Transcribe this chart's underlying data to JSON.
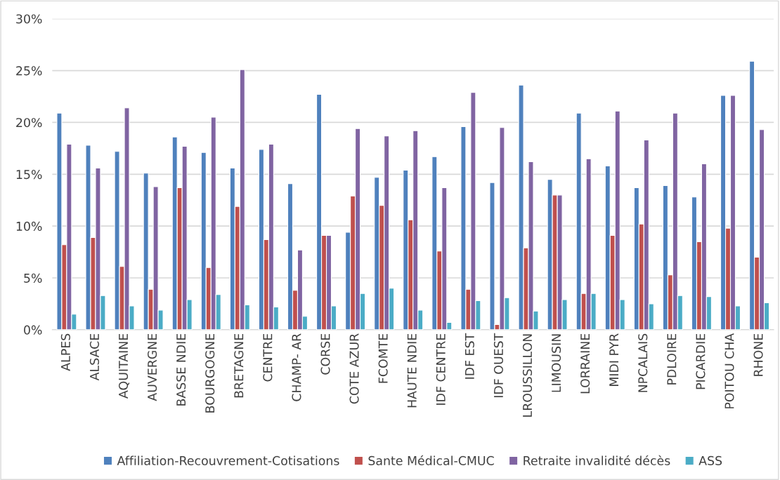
{
  "chart_data": {
    "type": "bar",
    "categories": [
      "ALPES",
      "ALSACE",
      "AQUITAINE",
      "AUVERGNE",
      "BASSE NDIE",
      "BOURGOGNE",
      "BRETAGNE",
      "CENTRE",
      "CHAMP- AR",
      "CORSE",
      "COTE AZUR",
      "FCOMTE",
      "HAUTE NDIE",
      "IDF CENTRE",
      "IDF EST",
      "IDF OUEST",
      "LROUSSILLON",
      "LIMOUSIN",
      "LORRAINE",
      "MIDI PYR",
      "NPCALAIS",
      "PDLOIRE",
      "PICARDIE",
      "POITOU CHA",
      "RHONE"
    ],
    "series": [
      {
        "name": "Affiliation-Recouvrement-Cotisations",
        "color": "#4f81bd",
        "values": [
          20.9,
          17.8,
          17.2,
          15.1,
          18.6,
          17.1,
          15.6,
          17.4,
          14.1,
          22.7,
          9.4,
          14.7,
          15.4,
          16.7,
          19.6,
          14.2,
          23.6,
          14.5,
          20.9,
          15.8,
          13.7,
          13.9,
          12.8,
          22.6,
          25.9
        ]
      },
      {
        "name": "Sante Médical-CMUC",
        "color": "#c0504d",
        "values": [
          8.2,
          8.9,
          6.1,
          3.9,
          13.7,
          6.0,
          11.9,
          8.7,
          3.8,
          9.1,
          12.9,
          12.0,
          10.6,
          7.6,
          3.9,
          0.5,
          7.9,
          13.0,
          3.5,
          9.1,
          10.2,
          5.3,
          8.5,
          9.8,
          7.0
        ]
      },
      {
        "name": "Retraite invalidité décès",
        "color": "#8064a2",
        "values": [
          17.9,
          15.6,
          21.4,
          13.8,
          17.7,
          20.5,
          25.1,
          17.9,
          7.7,
          9.1,
          19.4,
          18.7,
          19.2,
          13.7,
          22.9,
          19.5,
          16.2,
          13.0,
          16.5,
          21.1,
          18.3,
          20.9,
          16.0,
          22.6,
          19.3
        ]
      },
      {
        "name": "ASS",
        "color": "#4bacc6",
        "values": [
          1.5,
          3.3,
          2.3,
          1.9,
          2.9,
          3.4,
          2.4,
          2.2,
          1.3,
          2.3,
          3.5,
          4.0,
          1.9,
          0.7,
          2.8,
          3.1,
          1.8,
          2.9,
          3.5,
          2.9,
          2.5,
          3.3,
          3.2,
          2.3,
          2.6
        ]
      }
    ],
    "ylim": [
      0,
      30
    ],
    "yticks": [
      {
        "value": 0,
        "label": "0%"
      },
      {
        "value": 5,
        "label": "5%"
      },
      {
        "value": 10,
        "label": "10%"
      },
      {
        "value": 15,
        "label": "15%"
      },
      {
        "value": 20,
        "label": "20%"
      },
      {
        "value": 25,
        "label": "25%"
      },
      {
        "value": 30,
        "label": "30%"
      }
    ],
    "grid": "y",
    "legend": "bottom"
  }
}
